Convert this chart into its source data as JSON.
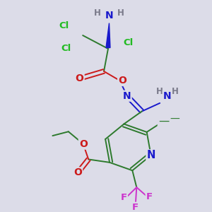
{
  "bg_color": "#dcdce8",
  "colors": {
    "C": "#2d7a2d",
    "H": "#7a7a8a",
    "N": "#1a1acc",
    "O": "#cc1a1a",
    "Cl": "#22bb22",
    "F": "#cc33cc"
  },
  "lw": 1.4
}
